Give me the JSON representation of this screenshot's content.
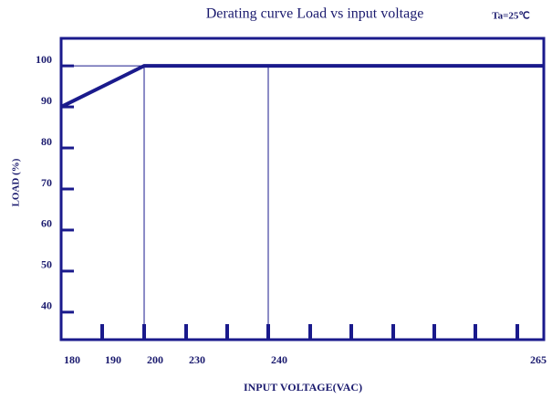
{
  "chart_data": {
    "type": "line",
    "title": "Derating curve Load vs input voltage",
    "annotation": "Ta=25℃",
    "y_label": "LOAD (%)",
    "x_label": "INPUT VOLTAGE(VAC)",
    "x": [
      180,
      200,
      265
    ],
    "series": [
      {
        "name": "Load",
        "color": "#1a1a8c",
        "values": [
          90,
          100,
          100
        ]
      }
    ],
    "vlines": [
      200,
      240
    ],
    "hlines": [
      100
    ],
    "xlim": [
      180,
      265
    ],
    "xticks": [
      180,
      190,
      200,
      230,
      240,
      265
    ],
    "ylim": [
      33.3,
      106.7
    ],
    "yticks": [
      40,
      50,
      60,
      70,
      80,
      90,
      100
    ]
  }
}
